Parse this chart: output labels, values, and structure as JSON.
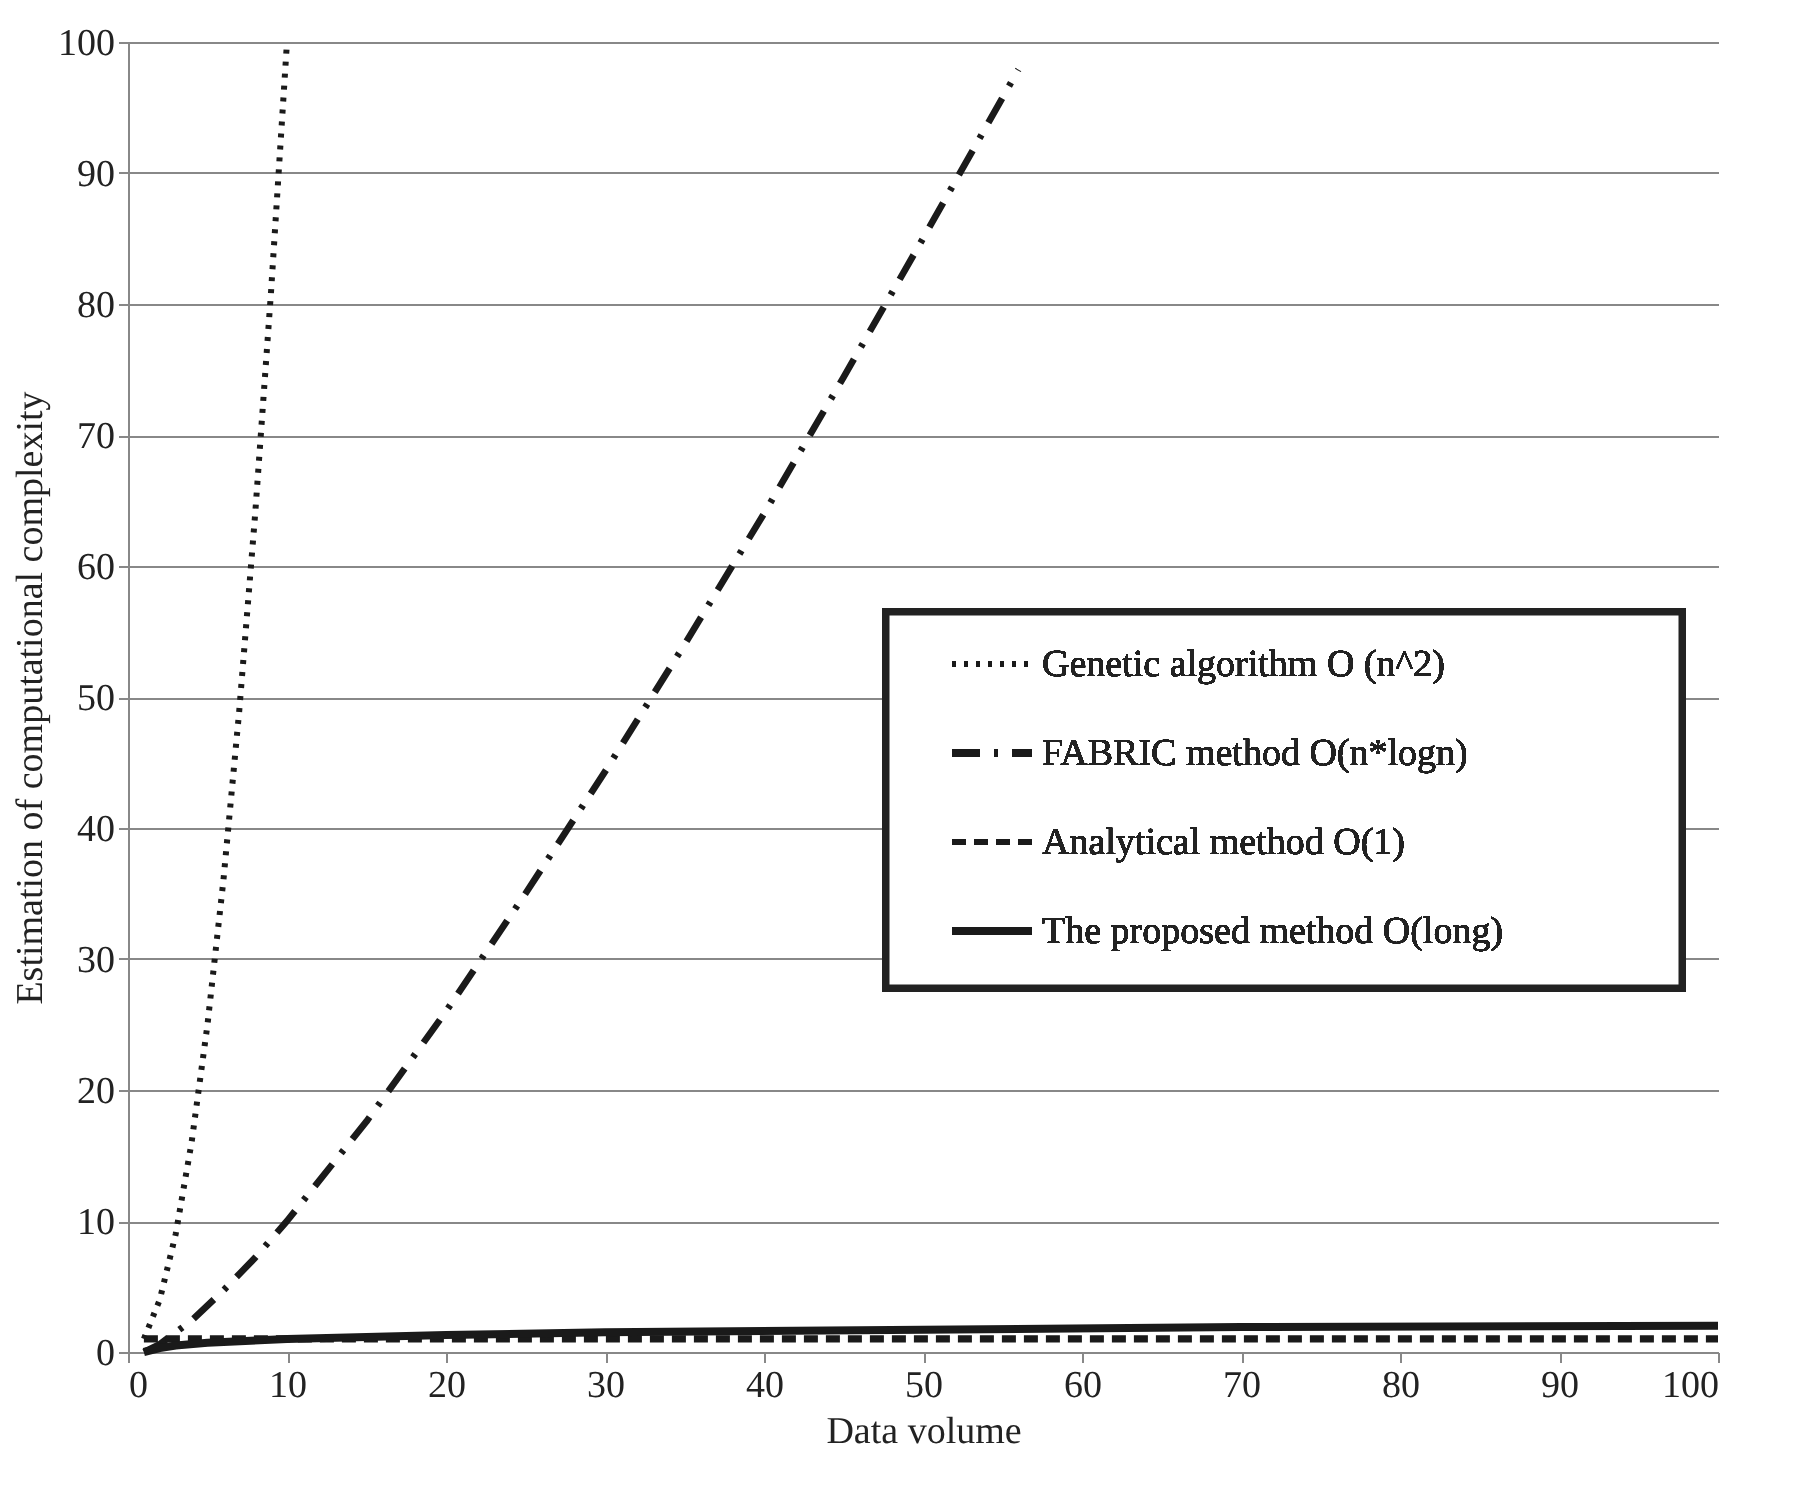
{
  "chart_data": {
    "type": "line",
    "xlabel": "Data volume",
    "ylabel": "Estimation of computational complexity",
    "xlim": [
      0,
      100
    ],
    "ylim": [
      0,
      100
    ],
    "xticks": [
      0,
      10,
      20,
      30,
      40,
      50,
      60,
      70,
      80,
      90,
      100
    ],
    "yticks": [
      0,
      10,
      20,
      30,
      40,
      50,
      60,
      70,
      80,
      90,
      100
    ],
    "grid": "y",
    "legend": "right",
    "marker": "none",
    "series": [
      {
        "name": "Genetic algorithm  O (n^2)",
        "color": "#1a1a1a",
        "line_style": "dotted",
        "x": [
          1,
          2,
          3,
          4,
          5,
          6,
          7,
          8,
          9,
          10
        ],
        "values": [
          1,
          4,
          9,
          16,
          25,
          36,
          49,
          64,
          81,
          100
        ]
      },
      {
        "name": "FABRIC method  O(n*logn)",
        "color": "#1a1a1a",
        "line_style": "dashdot",
        "x": [
          1,
          2,
          4,
          6,
          8,
          10,
          15,
          20,
          25,
          30,
          35,
          40,
          45,
          50,
          56
        ],
        "values": [
          0,
          0.6,
          2.4,
          4.7,
          7.2,
          10,
          17.6,
          26,
          35,
          44.3,
          54,
          64,
          74.4,
          85,
          97.9
        ]
      },
      {
        "name": "Analytical method  O(1)",
        "color": "#1a1a1a",
        "line_style": "dashed",
        "x": [
          1,
          100
        ],
        "values": [
          1,
          1
        ]
      },
      {
        "name": "The proposed method  O(long)",
        "color": "#1a1a1a",
        "line_style": "solid",
        "x": [
          1,
          2,
          3,
          5,
          10,
          20,
          30,
          50,
          70,
          100
        ],
        "values": [
          0,
          0.3,
          0.5,
          0.7,
          1,
          1.3,
          1.5,
          1.7,
          1.9,
          2
        ]
      }
    ]
  }
}
